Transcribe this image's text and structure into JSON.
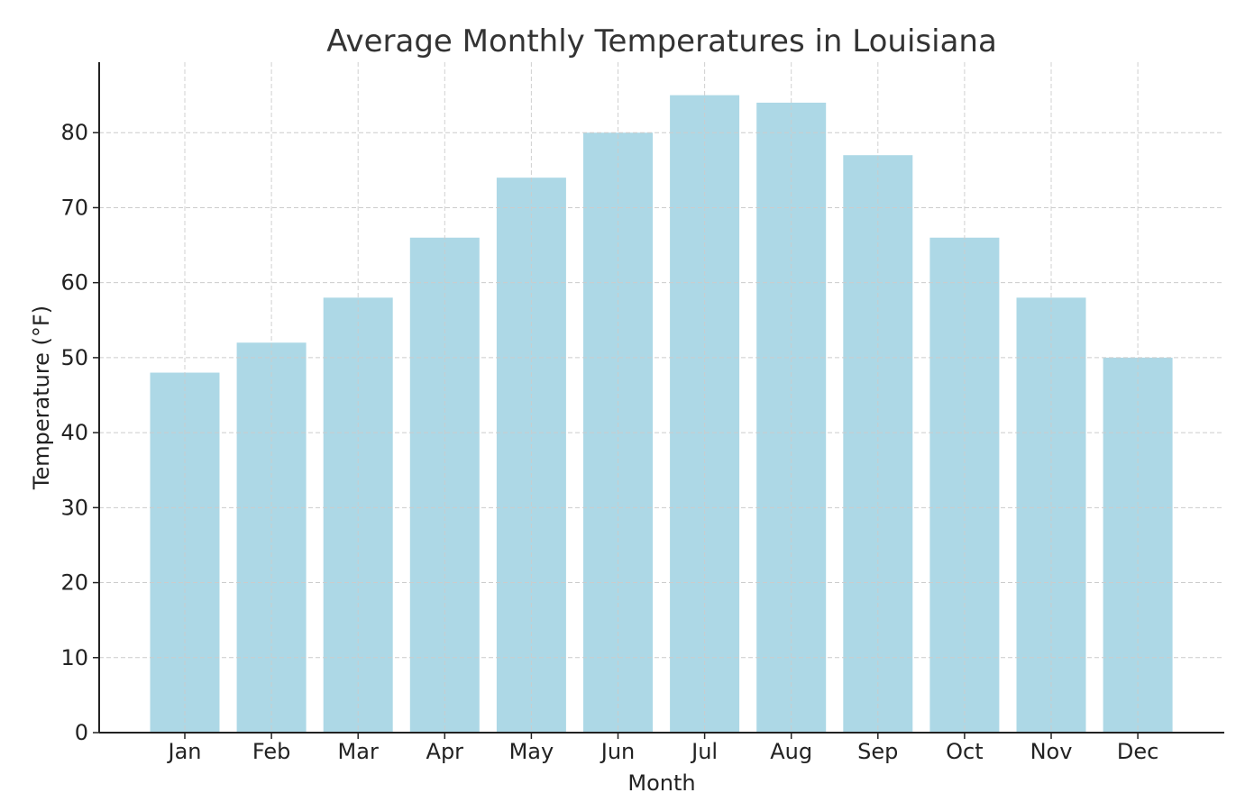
{
  "chart_data": {
    "type": "bar",
    "title": "Average Monthly Temperatures in Louisiana",
    "xlabel": "Month",
    "ylabel": "Temperature (°F)",
    "categories": [
      "Jan",
      "Feb",
      "Mar",
      "Apr",
      "May",
      "Jun",
      "Jul",
      "Aug",
      "Sep",
      "Oct",
      "Nov",
      "Dec"
    ],
    "values": [
      48,
      52,
      58,
      66,
      74,
      80,
      85,
      84,
      77,
      66,
      58,
      50
    ],
    "ylim": [
      0,
      89.4
    ],
    "yticks": [
      0,
      10,
      20,
      30,
      40,
      50,
      60,
      70,
      80
    ],
    "grid": true,
    "grid_style": "dashed",
    "colors": {
      "bar": "#add8e6",
      "grid": "#cccccc",
      "axis": "#222222",
      "text": "#333333"
    }
  }
}
